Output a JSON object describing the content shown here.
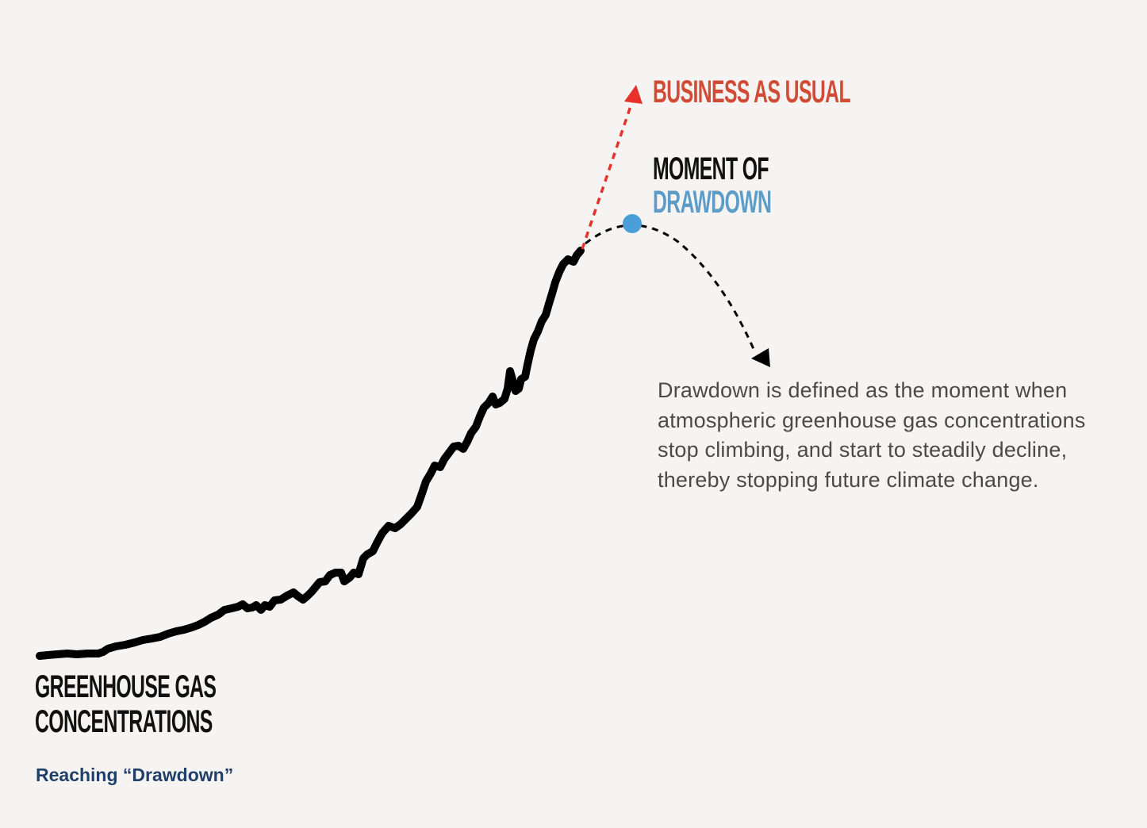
{
  "labels": {
    "business_as_usual": "Business as usual",
    "moment_of": "Moment of",
    "drawdown": "Drawdown",
    "greenhouse_gas": "Greenhouse gas",
    "concentrations": "Concentrations"
  },
  "description": "Drawdown is defined as the moment when atmospheric greenhouse gas concentrations stop climbing, and start to steadily decline, thereby stopping future climate change.",
  "caption": "Reaching “Drawdown”",
  "colors": {
    "background": "#f5f4f2",
    "curve": "#000000",
    "business_as_usual": "#d24b36",
    "business_arrow": "#e8312a",
    "drawdown": "#5b9cc9",
    "drawdown_point": "#4a9fd8",
    "moment_text": "#111111",
    "description_text": "#4a4a4a",
    "caption_text": "#213f68"
  },
  "icons": {
    "bau_arrowhead": "triangle-arrowhead-up",
    "decline_arrowhead": "triangle-arrowhead-down",
    "drawdown_point": "circle-marker"
  }
}
